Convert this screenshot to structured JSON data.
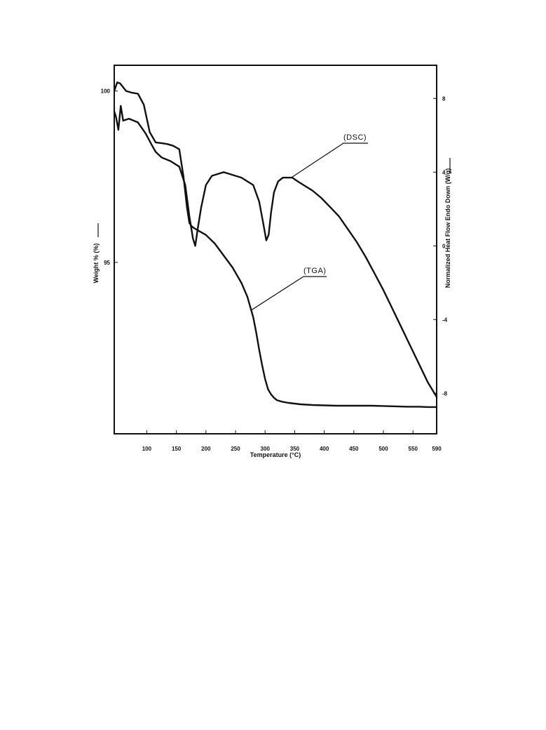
{
  "chart_data": {
    "type": "line",
    "xlabel": "Temperature (°C)",
    "ylabel_left": "Weight % (%)",
    "ylabel_right": "Normalized Heat Flow Endo Down (W/g)",
    "xlim": [
      45,
      590
    ],
    "ylim_left": [
      90,
      100.75
    ],
    "ylim_right": [
      -10.2,
      9.8
    ],
    "x_ticks": [
      100,
      150,
      200,
      250,
      300,
      350,
      400,
      450,
      500,
      550,
      590
    ],
    "x_tick_labels": [
      "100",
      "150",
      "200",
      "250",
      "300",
      "350",
      "400",
      "450",
      "500",
      "550",
      "590"
    ],
    "y_left_ticks": [
      100,
      95
    ],
    "y_left_tick_labels": [
      "100",
      "95"
    ],
    "y_right_ticks": [
      8,
      4,
      0,
      -4,
      -8
    ],
    "y_right_tick_labels": [
      "8",
      "4",
      "0",
      "-4",
      "-8"
    ],
    "grid": false,
    "series": [
      {
        "name": "(DSC)",
        "axis": "right",
        "x": [
          45,
          48,
          52,
          56,
          60,
          70,
          85,
          98,
          108,
          115,
          125,
          140,
          155,
          165,
          172,
          178,
          182,
          186,
          192,
          200,
          210,
          220,
          230,
          240,
          250,
          260,
          270,
          280,
          290,
          297,
          302,
          306,
          310,
          315,
          322,
          330,
          338,
          346,
          355,
          365,
          380,
          395,
          410,
          425,
          440,
          455,
          470,
          485,
          500,
          515,
          530,
          545,
          560,
          575,
          590
        ],
        "y": [
          7.3,
          7.0,
          6.3,
          7.6,
          6.8,
          6.9,
          6.7,
          6.1,
          5.5,
          5.1,
          4.8,
          4.6,
          4.3,
          3.3,
          1.6,
          0.4,
          0.0,
          0.9,
          2.1,
          3.3,
          3.8,
          3.9,
          4.0,
          3.9,
          3.8,
          3.7,
          3.5,
          3.3,
          2.4,
          1.2,
          0.3,
          0.6,
          1.8,
          2.9,
          3.5,
          3.7,
          3.7,
          3.7,
          3.5,
          3.3,
          3.0,
          2.6,
          2.1,
          1.6,
          0.9,
          0.2,
          -0.6,
          -1.5,
          -2.4,
          -3.4,
          -4.4,
          -5.4,
          -6.4,
          -7.4,
          -8.2
        ]
      },
      {
        "name": "(TGA)",
        "axis": "left",
        "x": [
          45,
          50,
          55,
          65,
          75,
          85,
          95,
          105,
          115,
          125,
          135,
          145,
          155,
          162,
          168,
          172,
          176,
          180,
          190,
          200,
          215,
          230,
          245,
          260,
          270,
          280,
          285,
          290,
          295,
          300,
          305,
          310,
          315,
          320,
          330,
          340,
          360,
          380,
          400,
          420,
          440,
          460,
          480,
          500,
          520,
          540,
          560,
          575,
          590
        ],
        "y": [
          100.0,
          100.25,
          100.22,
          100.0,
          99.95,
          99.92,
          99.6,
          98.8,
          98.5,
          98.48,
          98.45,
          98.4,
          98.3,
          97.5,
          96.6,
          96.15,
          96.05,
          96.0,
          95.9,
          95.8,
          95.55,
          95.2,
          94.85,
          94.4,
          94.0,
          93.4,
          92.95,
          92.45,
          92.0,
          91.6,
          91.3,
          91.15,
          91.05,
          90.98,
          90.93,
          90.9,
          90.86,
          90.84,
          90.83,
          90.82,
          90.82,
          90.82,
          90.82,
          90.81,
          90.8,
          90.79,
          90.79,
          90.78,
          90.78
        ]
      }
    ],
    "annotations": [
      {
        "text": "(DSC)",
        "series": "(DSC)"
      },
      {
        "text": "(TGA)",
        "series": "(TGA)"
      }
    ]
  }
}
